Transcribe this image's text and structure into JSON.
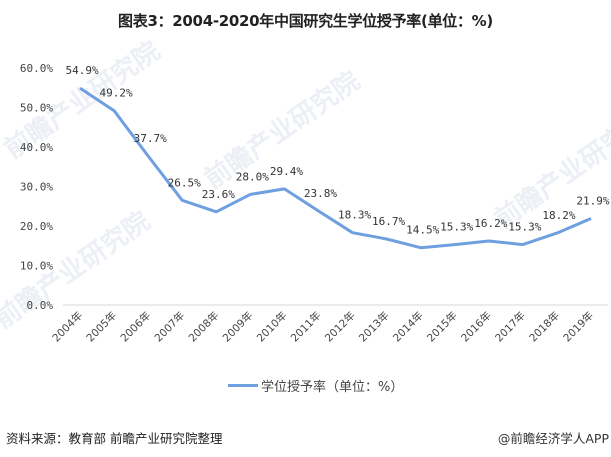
{
  "title": "图表3：2004-2020年中国研究生学位授予率(单位：%)",
  "legend": {
    "label": "学位授予率（单位：%）",
    "color": "#6e9fdf"
  },
  "footer": {
    "source": "资料来源：教育部 前瞻产业研究院整理",
    "credit": "@前瞻经济学人APP"
  },
  "watermarks": [
    "前瞻产业研究院",
    "前瞻产业研究院",
    "前瞻产业研究院",
    "前瞻产业研究院"
  ],
  "chart_data": {
    "type": "line",
    "title": "图表3：2004-2020年中国研究生学位授予率(单位：%)",
    "xlabel": "",
    "ylabel": "",
    "ylim": [
      0,
      60
    ],
    "yticks": [
      "0.0%",
      "10.0%",
      "20.0%",
      "30.0%",
      "40.0%",
      "50.0%",
      "60.0%"
    ],
    "categories": [
      "2004年",
      "2005年",
      "2006年",
      "2007年",
      "2008年",
      "2009年",
      "2010年",
      "2011年",
      "2012年",
      "2013年",
      "2014年",
      "2015年",
      "2016年",
      "2017年",
      "2018年",
      "2019年"
    ],
    "series": [
      {
        "name": "学位授予率（单位：%）",
        "values": [
          54.9,
          49.2,
          37.7,
          26.5,
          23.6,
          28.0,
          29.4,
          23.8,
          18.3,
          16.7,
          14.5,
          15.3,
          16.2,
          15.3,
          18.2,
          21.9
        ],
        "labels": [
          "54.9%",
          "49.2%",
          "37.7%",
          "26.5%",
          "23.6%",
          "28.0%",
          "29.4%",
          "23.8%",
          "18.3%",
          "16.7%",
          "14.5%",
          "15.3%",
          "16.2%",
          "15.3%",
          "18.2%",
          "21.9%"
        ],
        "color": "#6e9fdf"
      }
    ],
    "grid": false,
    "legend_position": "bottom"
  }
}
